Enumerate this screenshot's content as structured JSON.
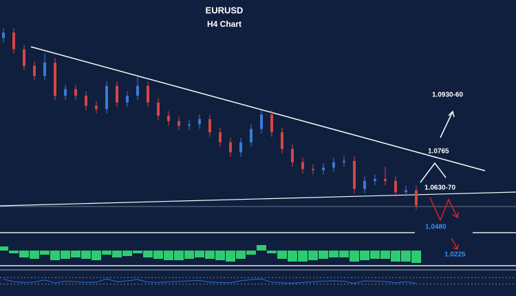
{
  "chart_data": {
    "type": "candlestick",
    "title": "EURUSD",
    "subtitle": "H4 Chart",
    "up_color": "#3a7bd5",
    "down_color": "#d64545",
    "ylim": [
      1.04,
      1.166
    ],
    "open": [
      1.158,
      1.1617,
      1.1506,
      1.1395,
      1.1328,
      1.1417,
      1.1195,
      1.1239,
      1.1195,
      1.1128,
      1.1106,
      1.1261,
      1.115,
      1.1195,
      1.1261,
      1.115,
      1.1062,
      1.1026,
      1.0995,
      1.1004,
      1.1039,
      1.0951,
      1.0884,
      1.0817,
      1.0884,
      1.0973,
      1.107,
      1.0951,
      1.084,
      1.0751,
      1.0706,
      1.0698,
      1.0715,
      1.0751,
      1.076,
      1.0573,
      1.0626,
      1.064,
      1.0626,
      1.0551,
      1.0564
    ],
    "high": [
      1.1647,
      1.1647,
      1.1536,
      1.1425,
      1.148,
      1.1447,
      1.1269,
      1.1269,
      1.1225,
      1.1158,
      1.1291,
      1.1291,
      1.1225,
      1.132,
      1.1291,
      1.118,
      1.1092,
      1.1056,
      1.1034,
      1.1069,
      1.1069,
      1.0981,
      1.0914,
      1.0914,
      1.1003,
      1.11,
      1.11,
      1.0981,
      1.087,
      1.0781,
      1.0736,
      1.0745,
      1.0781,
      1.079,
      1.079,
      1.0656,
      1.067,
      1.072,
      1.0656,
      1.0594,
      1.0594
    ],
    "low": [
      1.155,
      1.1476,
      1.1365,
      1.1298,
      1.1298,
      1.1165,
      1.1165,
      1.1165,
      1.1098,
      1.1076,
      1.1076,
      1.112,
      1.112,
      1.1165,
      1.112,
      1.1032,
      1.0996,
      1.0965,
      1.0965,
      1.0974,
      1.0921,
      1.0854,
      1.0787,
      1.0787,
      1.0854,
      1.0943,
      1.0921,
      1.081,
      1.0721,
      1.0676,
      1.0668,
      1.0668,
      1.0685,
      1.0721,
      1.0543,
      1.0543,
      1.0596,
      1.0596,
      1.0521,
      1.0521,
      1.0432
    ],
    "close": [
      1.1617,
      1.1506,
      1.1395,
      1.1328,
      1.1417,
      1.1195,
      1.1239,
      1.1195,
      1.1128,
      1.1106,
      1.1261,
      1.115,
      1.1195,
      1.1261,
      1.115,
      1.1062,
      1.1026,
      1.0995,
      1.1004,
      1.1039,
      1.0951,
      1.0884,
      1.0817,
      1.0884,
      1.0973,
      1.107,
      1.0951,
      1.084,
      1.0751,
      1.0706,
      1.0698,
      1.0715,
      1.0751,
      1.076,
      1.0573,
      1.0626,
      1.064,
      1.0626,
      1.0551,
      1.0564,
      1.0462
    ],
    "annotations": [
      "1.0930-60",
      "1.0765",
      "1.0630-70",
      "1.0480",
      "1.0225"
    ],
    "panels": [
      {
        "type": "bar",
        "color": "#2ecc71",
        "ylim": [
          -1,
          0.6
        ],
        "values": [
          0.3,
          -0.2,
          -0.5,
          -0.6,
          -0.3,
          -0.7,
          -0.6,
          -0.5,
          -0.6,
          -0.7,
          -0.3,
          -0.5,
          -0.4,
          -0.2,
          -0.5,
          -0.6,
          -0.7,
          -0.7,
          -0.6,
          -0.5,
          -0.6,
          -0.7,
          -0.8,
          -0.6,
          -0.3,
          0.4,
          -0.2,
          -0.6,
          -0.8,
          -0.8,
          -0.7,
          -0.6,
          -0.5,
          -0.5,
          -0.8,
          -0.7,
          -0.6,
          -0.6,
          -0.8,
          -0.8,
          -0.9
        ]
      },
      {
        "type": "line",
        "color": "#2f6fe0",
        "ylim": [
          0,
          100
        ],
        "levels": [
          70,
          30
        ],
        "values": [
          60,
          45,
          40,
          42,
          55,
          38,
          48,
          45,
          40,
          42,
          62,
          45,
          50,
          58,
          42,
          40,
          44,
          46,
          50,
          52,
          42,
          40,
          38,
          50,
          58,
          62,
          42,
          38,
          36,
          40,
          44,
          48,
          50,
          48,
          35,
          50,
          48,
          46,
          38,
          44,
          36
        ]
      }
    ]
  }
}
